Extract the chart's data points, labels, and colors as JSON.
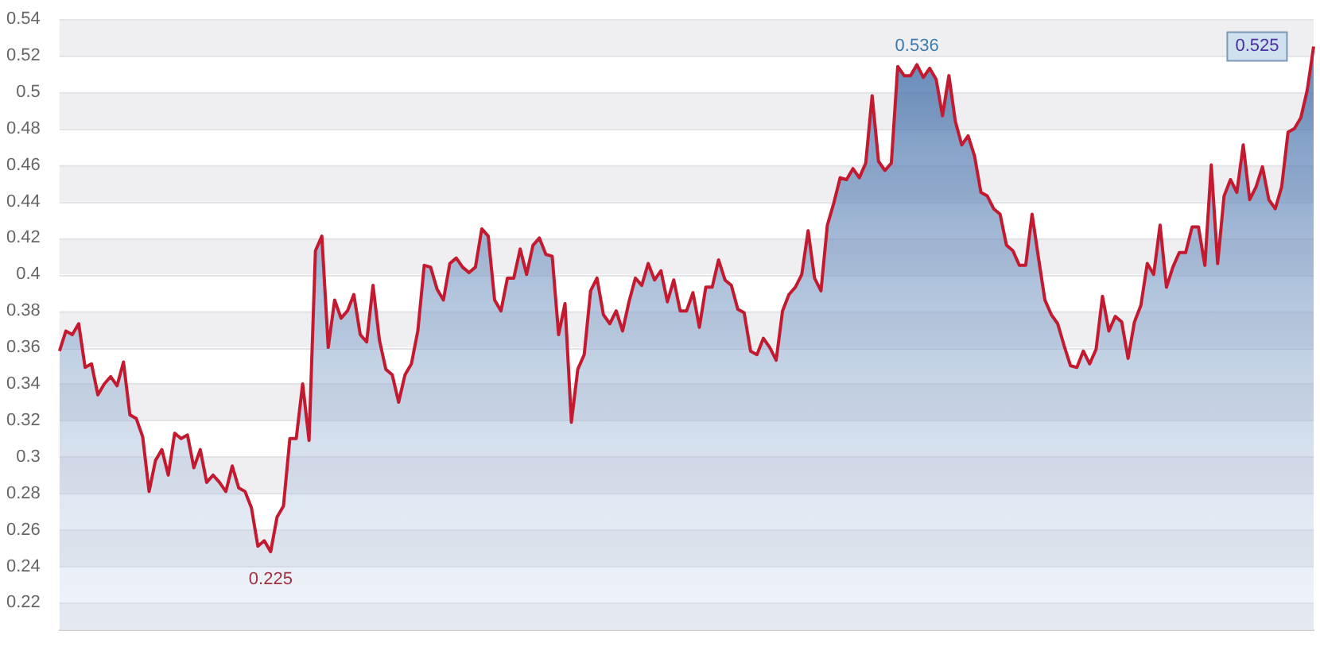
{
  "chart_data": {
    "type": "area",
    "categories": [
      null,
      null,
      null,
      null,
      null,
      null,
      null,
      null,
      null,
      null,
      null,
      null,
      null,
      null,
      null,
      null,
      null,
      null,
      null,
      null,
      null,
      null,
      null,
      null,
      null,
      null,
      null,
      null,
      null,
      null,
      null,
      null,
      null,
      null,
      null,
      null,
      null,
      null,
      null,
      null,
      null,
      null,
      null,
      null,
      null,
      null,
      null,
      null,
      null,
      null,
      null,
      null,
      null,
      null,
      null,
      null,
      null,
      null,
      null,
      null,
      null,
      null,
      null,
      null,
      null,
      null,
      null,
      null,
      null,
      null,
      null,
      null,
      null,
      null,
      null,
      null,
      null,
      null,
      null,
      null,
      null,
      null,
      null,
      null,
      null,
      null,
      null,
      null,
      null,
      null,
      null,
      null,
      null,
      null,
      null,
      null,
      null,
      null,
      null,
      null,
      null,
      null,
      null,
      null,
      null,
      null,
      null,
      null,
      null,
      null,
      null,
      null,
      null,
      null,
      null,
      null,
      null,
      null,
      null,
      null,
      null,
      null,
      null,
      null,
      null,
      null,
      null,
      null,
      null,
      null,
      null,
      null,
      null,
      null,
      null,
      null,
      null,
      null,
      null,
      null,
      null,
      null,
      null,
      null,
      null,
      null,
      null,
      null,
      null,
      null,
      null,
      null,
      null,
      null,
      null,
      null,
      null,
      null,
      null,
      null,
      null,
      null,
      null,
      null,
      null,
      null,
      null,
      null,
      null,
      null,
      null,
      null,
      null,
      null,
      null,
      null,
      null,
      null,
      null,
      null,
      null,
      null,
      null,
      null,
      null,
      null,
      null,
      null,
      null,
      null,
      null,
      null,
      null,
      null,
      null,
      null,
      null
    ],
    "series": [
      {
        "color": "#c41a30",
        "values": [
          0.358,
          0.369,
          0.367,
          0.373,
          0.349,
          0.351,
          0.334,
          0.34,
          0.344,
          0.339,
          0.352,
          0.323,
          0.321,
          0.311,
          0.281,
          0.298,
          0.304,
          0.29,
          0.313,
          0.31,
          0.312,
          0.294,
          0.304,
          0.286,
          0.29,
          0.286,
          0.281,
          0.295,
          0.283,
          0.281,
          0.272,
          0.251,
          0.254,
          0.248,
          0.267,
          0.273,
          0.31,
          0.31,
          0.34,
          0.309,
          0.413,
          0.421,
          0.36,
          0.386,
          0.376,
          0.38,
          0.389,
          0.367,
          0.363,
          0.394,
          0.364,
          0.348,
          0.345,
          0.33,
          0.345,
          0.351,
          0.369,
          0.405,
          0.404,
          0.392,
          0.386,
          0.406,
          0.409,
          0.404,
          0.401,
          0.404,
          0.425,
          0.421,
          0.386,
          0.38,
          0.398,
          0.398,
          0.414,
          0.4,
          0.416,
          0.42,
          0.411,
          0.41,
          0.367,
          0.384,
          0.319,
          0.348,
          0.356,
          0.391,
          0.398,
          0.378,
          0.373,
          0.38,
          0.369,
          0.385,
          0.398,
          0.394,
          0.406,
          0.397,
          0.402,
          0.385,
          0.397,
          0.38,
          0.38,
          0.39,
          0.371,
          0.393,
          0.393,
          0.408,
          0.397,
          0.394,
          0.381,
          0.379,
          0.358,
          0.356,
          0.365,
          0.36,
          0.353,
          0.38,
          0.389,
          0.393,
          0.4,
          0.424,
          0.398,
          0.391,
          0.427,
          0.439,
          0.453,
          0.452,
          0.458,
          0.453,
          0.461,
          0.498,
          0.462,
          0.457,
          0.461,
          0.514,
          0.509,
          0.509,
          0.515,
          0.508,
          0.513,
          0.507,
          0.487,
          0.509,
          0.484,
          0.471,
          0.476,
          0.465,
          0.445,
          0.443,
          0.436,
          0.433,
          0.416,
          0.413,
          0.405,
          0.405,
          0.433,
          0.409,
          0.386,
          0.378,
          0.373,
          0.361,
          0.35,
          0.349,
          0.358,
          0.351,
          0.359,
          0.388,
          0.369,
          0.377,
          0.374,
          0.354,
          0.374,
          0.383,
          0.406,
          0.4,
          0.427,
          0.393,
          0.404,
          0.412,
          0.412,
          0.426,
          0.426,
          0.405,
          0.46,
          0.406,
          0.443,
          0.452,
          0.445,
          0.471,
          0.441,
          0.448,
          0.459,
          0.441,
          0.436,
          0.448,
          0.478,
          0.48,
          0.486,
          0.501,
          0.525
        ]
      }
    ],
    "ylim": [
      0.205,
      0.54
    ],
    "yticks": [
      0.22,
      0.24,
      0.26,
      0.28,
      0.3,
      0.32,
      0.34,
      0.36,
      0.38,
      0.4,
      0.42,
      0.44,
      0.46,
      0.48,
      0.5,
      0.52,
      0.54
    ],
    "grid": true,
    "legend": false,
    "marker": "none",
    "line_style": "solid",
    "tick_labels": "y",
    "annotations": [
      "0.536",
      "0.225",
      "0.525"
    ]
  }
}
